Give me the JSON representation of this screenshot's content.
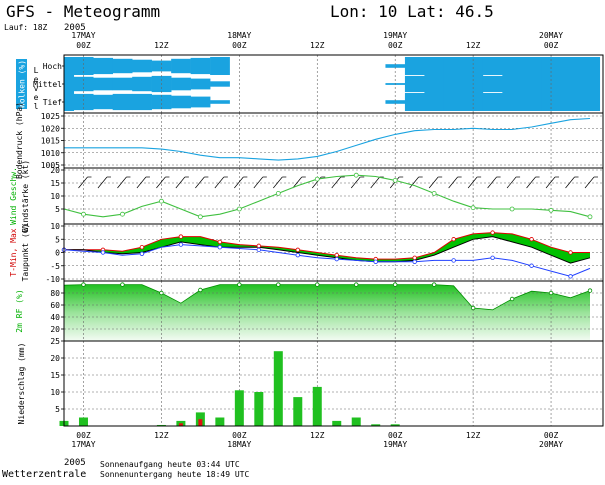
{
  "header": {
    "title": "GFS  -  Meteogramm",
    "location": "Lon: 10 Lat: 46.5",
    "run": "Lauf: 18Z",
    "year_top": "2005"
  },
  "time_axis": {
    "labels_top": [
      {
        "t": 0,
        "hour": "00Z",
        "date": "17MAY"
      },
      {
        "t": 12,
        "hour": "12Z",
        "date": ""
      },
      {
        "t": 24,
        "hour": "00Z",
        "date": "18MAY"
      },
      {
        "t": 36,
        "hour": "12Z",
        "date": ""
      },
      {
        "t": 48,
        "hour": "00Z",
        "date": "19MAY"
      },
      {
        "t": 60,
        "hour": "12Z",
        "date": ""
      },
      {
        "t": 72,
        "hour": "00Z",
        "date": "20MAY"
      }
    ],
    "labels_bottom": [
      {
        "t": 0,
        "hour": "00Z",
        "date": "17MAY"
      },
      {
        "t": 12,
        "hour": "12Z",
        "date": ""
      },
      {
        "t": 24,
        "hour": "00Z",
        "date": "18MAY"
      },
      {
        "t": 36,
        "hour": "12Z",
        "date": ""
      },
      {
        "t": 48,
        "hour": "00Z",
        "date": "19MAY"
      },
      {
        "t": 60,
        "hour": "12Z",
        "date": ""
      },
      {
        "t": 72,
        "hour": "00Z",
        "date": "20MAY"
      }
    ],
    "year_bottom": "2005"
  },
  "footer": {
    "brand": "Wetterzentrale",
    "sunrise": "Sonnenaufgang heute 03:44 UTC",
    "sunset": "Sonnenuntergang heute 18:49 UTC"
  },
  "colors": {
    "cloud": "#1aa3e0",
    "green_dark": "#00c000",
    "green_light": "#a8f0a8",
    "pressure_line": "#1aa3e0",
    "wind_line": "#40c040",
    "temp_line": "#e00000",
    "dew_line": "#2040ff",
    "precip_bar": "#20c020",
    "precip_bar_red": "#e01010",
    "side_label": "#00a0e0"
  },
  "chart_data": [
    {
      "type": "heatmap",
      "ylabel": "Wolken (%)",
      "side_word": "Level",
      "levels": [
        "Hoch",
        "Mittel",
        "Tief"
      ],
      "x": [
        -3,
        0,
        3,
        6,
        9,
        12,
        15,
        18,
        21,
        24,
        27,
        30,
        33,
        36,
        39,
        42,
        45,
        48,
        51,
        54,
        57,
        60,
        63,
        66,
        69,
        72,
        75,
        78
      ],
      "cover": {
        "hoch": [
          100,
          100,
          90,
          80,
          70,
          60,
          80,
          90,
          100,
          0,
          0,
          0,
          0,
          0,
          0,
          0,
          0,
          20,
          100,
          100,
          100,
          100,
          100,
          100,
          100,
          100,
          100,
          100
        ],
        "mittel": [
          100,
          80,
          70,
          70,
          80,
          90,
          70,
          60,
          30,
          0,
          0,
          0,
          0,
          0,
          0,
          0,
          0,
          10,
          90,
          100,
          100,
          100,
          90,
          100,
          100,
          100,
          100,
          100
        ],
        "tief": [
          100,
          90,
          80,
          90,
          90,
          80,
          70,
          60,
          20,
          0,
          0,
          0,
          0,
          0,
          0,
          0,
          0,
          20,
          100,
          100,
          100,
          100,
          100,
          100,
          100,
          100,
          100,
          100
        ]
      }
    },
    {
      "type": "line",
      "ylabel": "Bodendruck (hPa)",
      "ylim": [
        1005,
        1025
      ],
      "yticks": [
        1005,
        1010,
        1015,
        1020,
        1025
      ],
      "x": [
        -3,
        0,
        3,
        6,
        9,
        12,
        15,
        18,
        21,
        24,
        27,
        30,
        33,
        36,
        39,
        42,
        45,
        48,
        51,
        54,
        57,
        60,
        63,
        66,
        69,
        72,
        75,
        78
      ],
      "values": [
        1012,
        1012,
        1012,
        1012,
        1012,
        1011.5,
        1010.5,
        1009,
        1008,
        1008,
        1007.5,
        1007,
        1007.5,
        1008.5,
        1010.5,
        1013,
        1015.5,
        1017.5,
        1019,
        1019.5,
        1019.5,
        1020,
        1019.5,
        1019.5,
        1020.5,
        1022,
        1023.5,
        1024
      ]
    },
    {
      "type": "line",
      "ylabel": "Windstärke (kt)",
      "side_label": "Wind Geschw.",
      "ylim": [
        0,
        20
      ],
      "yticks": [
        5,
        10,
        15,
        20
      ],
      "x": [
        -3,
        0,
        3,
        6,
        9,
        12,
        15,
        18,
        21,
        24,
        27,
        30,
        33,
        36,
        39,
        42,
        45,
        48,
        51,
        54,
        57,
        60,
        63,
        66,
        69,
        72,
        75,
        78
      ],
      "values": [
        5,
        3,
        2,
        3,
        6,
        8,
        5,
        2,
        3,
        5,
        8,
        11,
        14,
        16.5,
        17.5,
        18,
        17.5,
        16,
        14,
        11,
        8,
        5.5,
        5,
        5,
        5,
        4.5,
        4,
        2
      ]
    },
    {
      "type": "area",
      "ylabel": "Taupunkt (C)",
      "side_label": "T-Min, Max",
      "ylim": [
        -10,
        10
      ],
      "yticks": [
        -10,
        -5,
        0,
        5,
        10
      ],
      "x": [
        -3,
        0,
        3,
        6,
        9,
        12,
        15,
        18,
        21,
        24,
        27,
        30,
        33,
        36,
        39,
        42,
        45,
        48,
        51,
        54,
        57,
        60,
        63,
        66,
        69,
        72,
        75,
        78
      ],
      "series": [
        {
          "name": "T-Max",
          "values": [
            1,
            1,
            1,
            0.5,
            2,
            5,
            6,
            6,
            4,
            3,
            2.5,
            2,
            1,
            0,
            -1,
            -2,
            -2.5,
            -2.5,
            -2,
            0,
            5,
            7,
            7.5,
            7,
            5,
            2,
            0,
            0
          ]
        },
        {
          "name": "T-Min",
          "values": [
            1,
            1,
            0,
            -0.5,
            0,
            2,
            4,
            3,
            2,
            2,
            2,
            1,
            0,
            -1,
            -2,
            -3,
            -3.5,
            -3.5,
            -3,
            -1,
            2,
            5,
            6,
            4,
            2,
            -1,
            -4,
            -2
          ]
        },
        {
          "name": "Taupunkt",
          "values": [
            1,
            0.5,
            0,
            -1,
            -0.5,
            2,
            3,
            2.5,
            2,
            1.5,
            1,
            0,
            -1,
            -2,
            -2.5,
            -3,
            -3.5,
            -3.5,
            -3.5,
            -3,
            -3,
            -3,
            -2,
            -3,
            -5,
            -7,
            -9,
            -6
          ]
        }
      ]
    },
    {
      "type": "area",
      "ylabel": "2m RF (%)",
      "ylim": [
        0,
        100
      ],
      "yticks": [
        20,
        40,
        60,
        80
      ],
      "x": [
        -3,
        0,
        3,
        6,
        9,
        12,
        15,
        18,
        21,
        24,
        27,
        30,
        33,
        36,
        39,
        42,
        45,
        48,
        51,
        54,
        57,
        60,
        63,
        66,
        69,
        72,
        75,
        78
      ],
      "values": [
        93,
        94,
        94,
        94,
        94,
        80,
        63,
        85,
        94,
        94,
        94,
        94,
        94,
        94,
        94,
        94,
        94,
        94,
        94,
        94,
        92,
        55,
        52,
        70,
        83,
        80,
        72,
        84
      ]
    },
    {
      "type": "bar",
      "ylabel": "Niederschlag (mm)",
      "ylim": [
        0,
        25
      ],
      "yticks": [
        5,
        10,
        15,
        20,
        25
      ],
      "x": [
        -3,
        0,
        3,
        6,
        9,
        12,
        15,
        18,
        21,
        24,
        27,
        30,
        33,
        36,
        39,
        42,
        45,
        48,
        51,
        54,
        57,
        60,
        63,
        66,
        69,
        72,
        75
      ],
      "values": [
        1.5,
        2.5,
        0,
        0,
        0,
        0.3,
        1.5,
        4,
        2.5,
        10.5,
        10,
        22,
        8.5,
        11.5,
        1.5,
        2.5,
        0.5,
        0.5,
        0,
        0,
        0,
        0,
        0,
        0,
        0,
        0,
        0
      ],
      "red_values": [
        0,
        0,
        0,
        0,
        0,
        0,
        0.8,
        2,
        0,
        0,
        0,
        0,
        0,
        0,
        0,
        0,
        0,
        0,
        0,
        0,
        0,
        0,
        0,
        0,
        0,
        0,
        0
      ]
    }
  ]
}
